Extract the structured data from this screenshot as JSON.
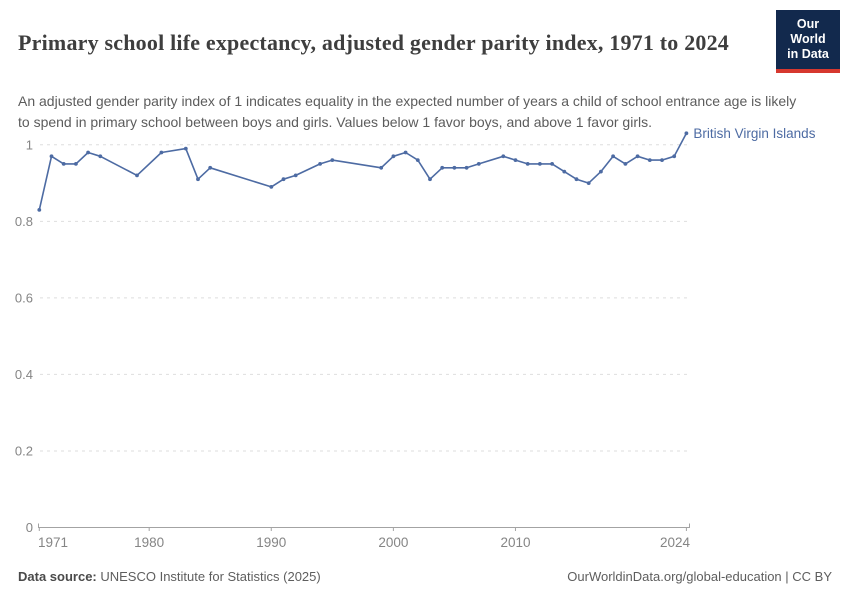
{
  "header": {
    "title": "Primary school life expectancy, adjusted gender parity index, 1971 to 2024",
    "subtitle": "An adjusted gender parity index of 1 indicates equality in the expected number of years a child of school entrance age is likely to spend in primary school between boys and girls. Values below 1 favor boys, and above 1 favor girls."
  },
  "logo": {
    "line1": "Our World",
    "line2": "in Data",
    "bg_color": "#12294d",
    "stripe_color": "#d6382f",
    "text_color": "#ffffff"
  },
  "footer": {
    "source_label": "Data source:",
    "source_text": " UNESCO Institute for Statistics (2025)",
    "rights": "OurWorldinData.org/global-education | CC BY"
  },
  "chart_data": {
    "type": "line",
    "title": "Primary school life expectancy, adjusted gender parity index, 1971 to 2024",
    "xlabel": "",
    "ylabel": "",
    "xlim": [
      1971,
      2024
    ],
    "ylim": [
      0,
      1.05
    ],
    "xticks": [
      1971,
      1980,
      1990,
      2000,
      2010,
      2024
    ],
    "yticks": [
      0,
      0.2,
      0.4,
      0.6,
      0.8,
      1
    ],
    "grid": "horizontal-dashed",
    "legend_position": "end-of-line-label",
    "series": [
      {
        "name": "British Virgin Islands",
        "color": "#4d6ba3",
        "points": [
          [
            1971,
            0.83
          ],
          [
            1972,
            0.97
          ],
          [
            1973,
            0.95
          ],
          [
            1974,
            0.95
          ],
          [
            1975,
            0.98
          ],
          [
            1976,
            0.97
          ],
          [
            1979,
            0.92
          ],
          [
            1981,
            0.98
          ],
          [
            1983,
            0.99
          ],
          [
            1984,
            0.91
          ],
          [
            1985,
            0.94
          ],
          [
            1990,
            0.89
          ],
          [
            1991,
            0.91
          ],
          [
            1992,
            0.92
          ],
          [
            1994,
            0.95
          ],
          [
            1995,
            0.96
          ],
          [
            1999,
            0.94
          ],
          [
            2000,
            0.97
          ],
          [
            2001,
            0.98
          ],
          [
            2002,
            0.96
          ],
          [
            2003,
            0.91
          ],
          [
            2004,
            0.94
          ],
          [
            2005,
            0.94
          ],
          [
            2006,
            0.94
          ],
          [
            2007,
            0.95
          ],
          [
            2009,
            0.97
          ],
          [
            2010,
            0.96
          ],
          [
            2011,
            0.95
          ],
          [
            2012,
            0.95
          ],
          [
            2013,
            0.95
          ],
          [
            2014,
            0.93
          ],
          [
            2015,
            0.91
          ],
          [
            2016,
            0.9
          ],
          [
            2017,
            0.93
          ],
          [
            2018,
            0.97
          ],
          [
            2019,
            0.95
          ],
          [
            2020,
            0.97
          ],
          [
            2021,
            0.96
          ],
          [
            2022,
            0.96
          ],
          [
            2023,
            0.97
          ],
          [
            2024,
            1.03
          ]
        ]
      }
    ],
    "colors": {
      "grid": "#dedede",
      "axis": "#a3a3a3",
      "tick_label": "#858585"
    }
  }
}
